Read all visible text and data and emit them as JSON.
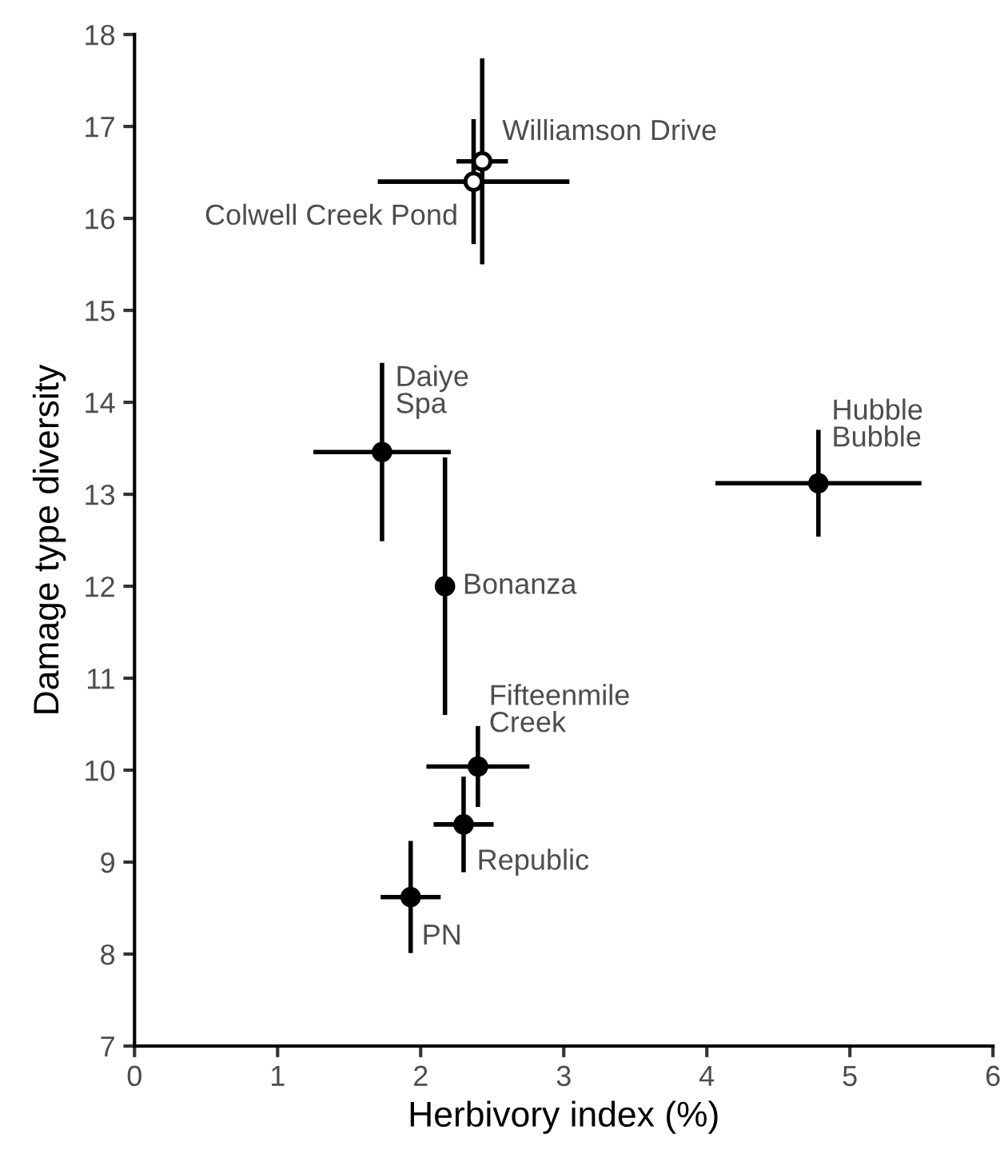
{
  "chart_data": {
    "type": "scatter",
    "xlabel": "Herbivory index (%)",
    "ylabel": "Damage type diversity",
    "xlim": [
      0,
      6
    ],
    "ylim": [
      7,
      18
    ],
    "xticks": [
      0,
      1,
      2,
      3,
      4,
      5,
      6
    ],
    "yticks": [
      7,
      8,
      9,
      10,
      11,
      12,
      13,
      14,
      15,
      16,
      17,
      18
    ],
    "grid": false,
    "legend": false,
    "marker": "circle",
    "x": [
      2.43,
      2.37,
      1.73,
      2.17,
      2.4,
      2.3,
      1.93,
      4.78
    ],
    "values": [
      16.62,
      16.4,
      13.46,
      12.0,
      10.04,
      9.41,
      8.62,
      13.12
    ],
    "colors": [
      "#ffffff",
      "#ffffff",
      "#000000",
      "#000000",
      "#000000",
      "#000000",
      "#000000",
      "#000000"
    ],
    "errors": [
      1.12,
      0.68,
      0.97,
      1.4,
      0.44,
      0.52,
      0.61,
      0.58
    ],
    "xerrors": [
      0.18,
      0.67,
      0.48,
      null,
      0.36,
      0.21,
      0.21,
      0.72
    ],
    "annotations": [
      {
        "text": "Williamson Drive",
        "x": 2.43,
        "y": 16.62
      },
      {
        "text": "Colwell Creek Pond",
        "x": 2.37,
        "y": 16.4
      },
      {
        "text": "Daiye\nSpa",
        "x": 1.73,
        "y": 13.46
      },
      {
        "text": "Bonanza",
        "x": 2.17,
        "y": 12.0
      },
      {
        "text": "Fifteenmile\nCreek",
        "x": 2.4,
        "y": 10.04
      },
      {
        "text": "Republic",
        "x": 2.3,
        "y": 9.41
      },
      {
        "text": "PN",
        "x": 1.93,
        "y": 8.62
      },
      {
        "text": "Hubble\nBubble",
        "x": 4.78,
        "y": 13.12
      }
    ]
  }
}
